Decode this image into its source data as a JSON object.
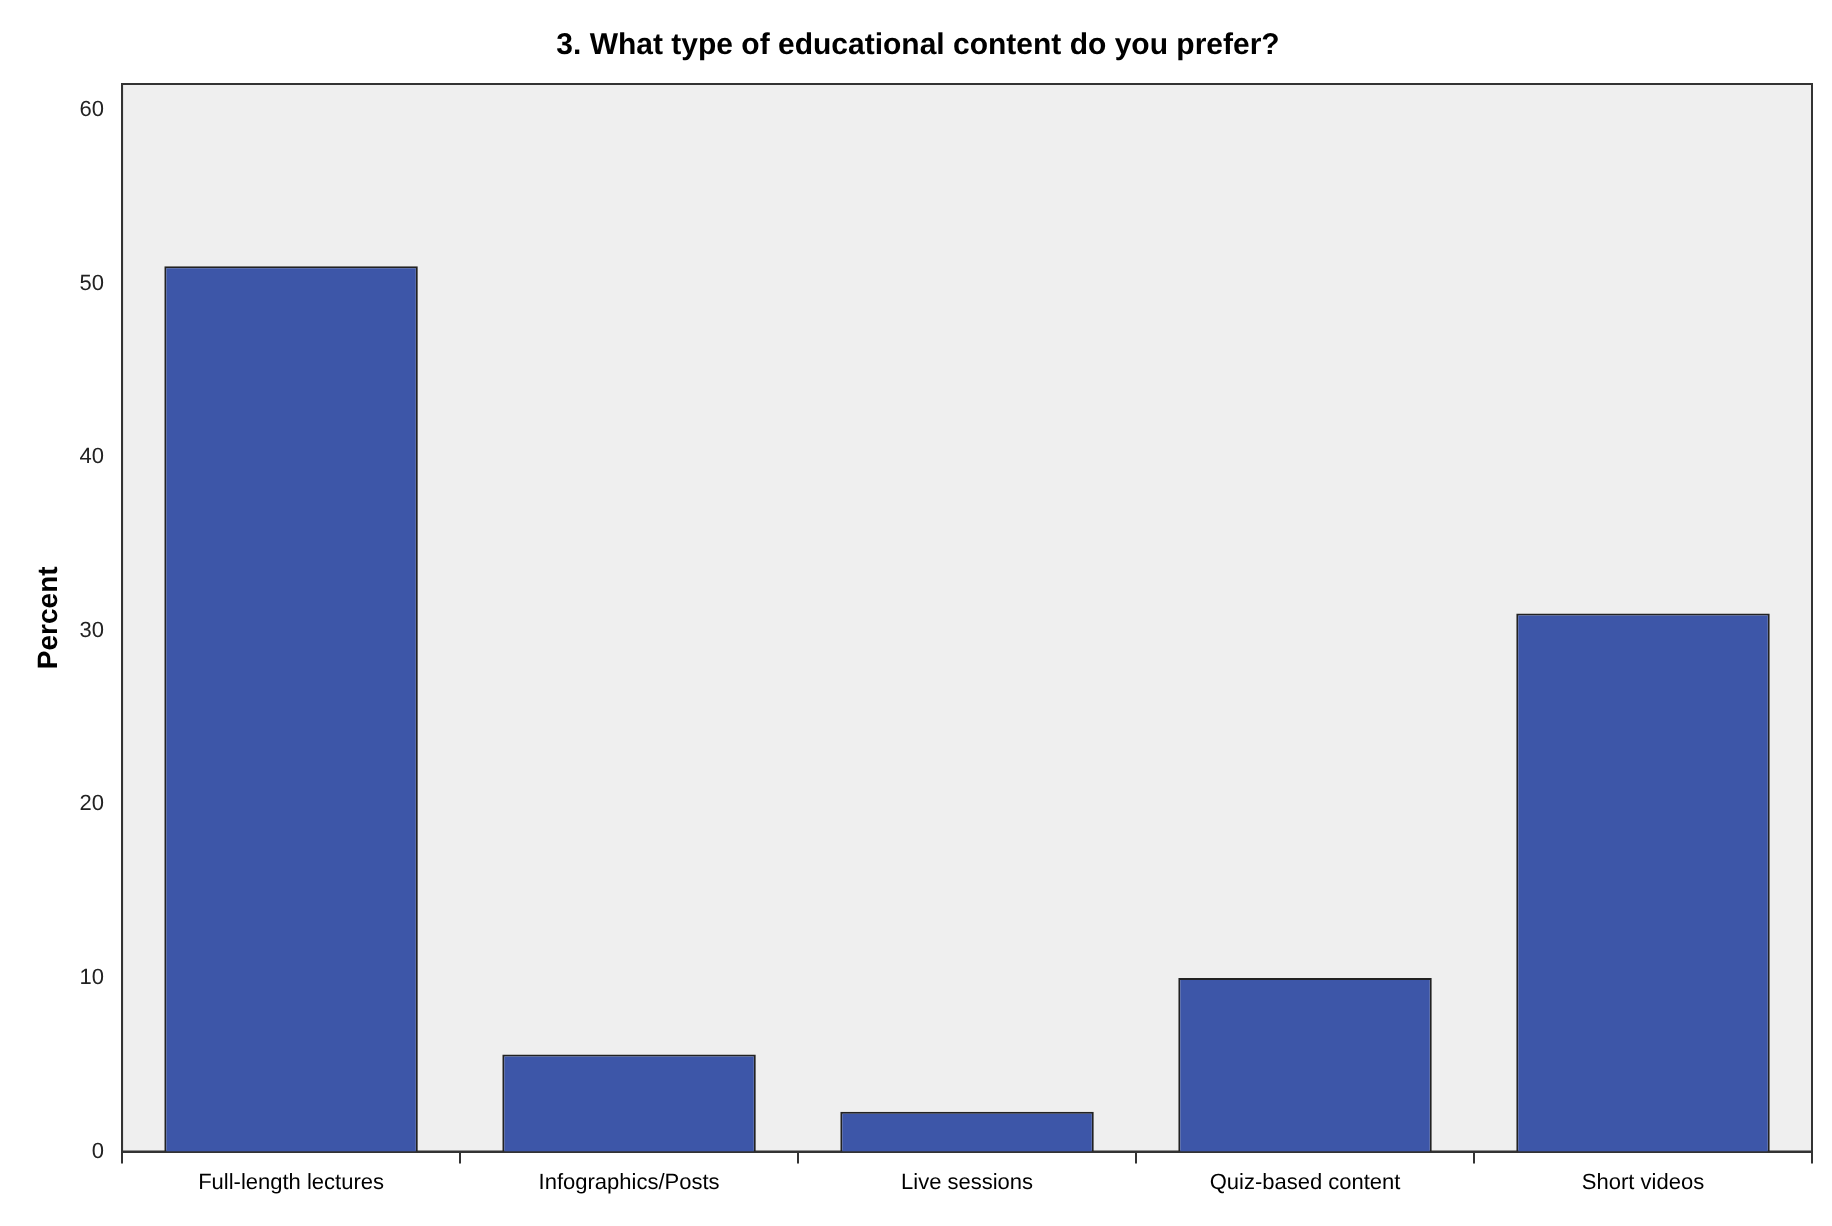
{
  "chart_data": {
    "type": "bar",
    "title": "3. What type of educational content do you prefer?",
    "ylabel": "Percent",
    "categories": [
      "Full-length lectures",
      "Infographics/Posts",
      "Live sessions",
      "Quiz-based content",
      "Short videos"
    ],
    "values": [
      51,
      5.6,
      2.3,
      10,
      31
    ],
    "color": "#3d56a8",
    "ylim": [
      0,
      61.5
    ],
    "yticks": [
      0,
      10,
      20,
      30,
      40,
      50,
      60
    ],
    "grid": false,
    "legend": false
  }
}
